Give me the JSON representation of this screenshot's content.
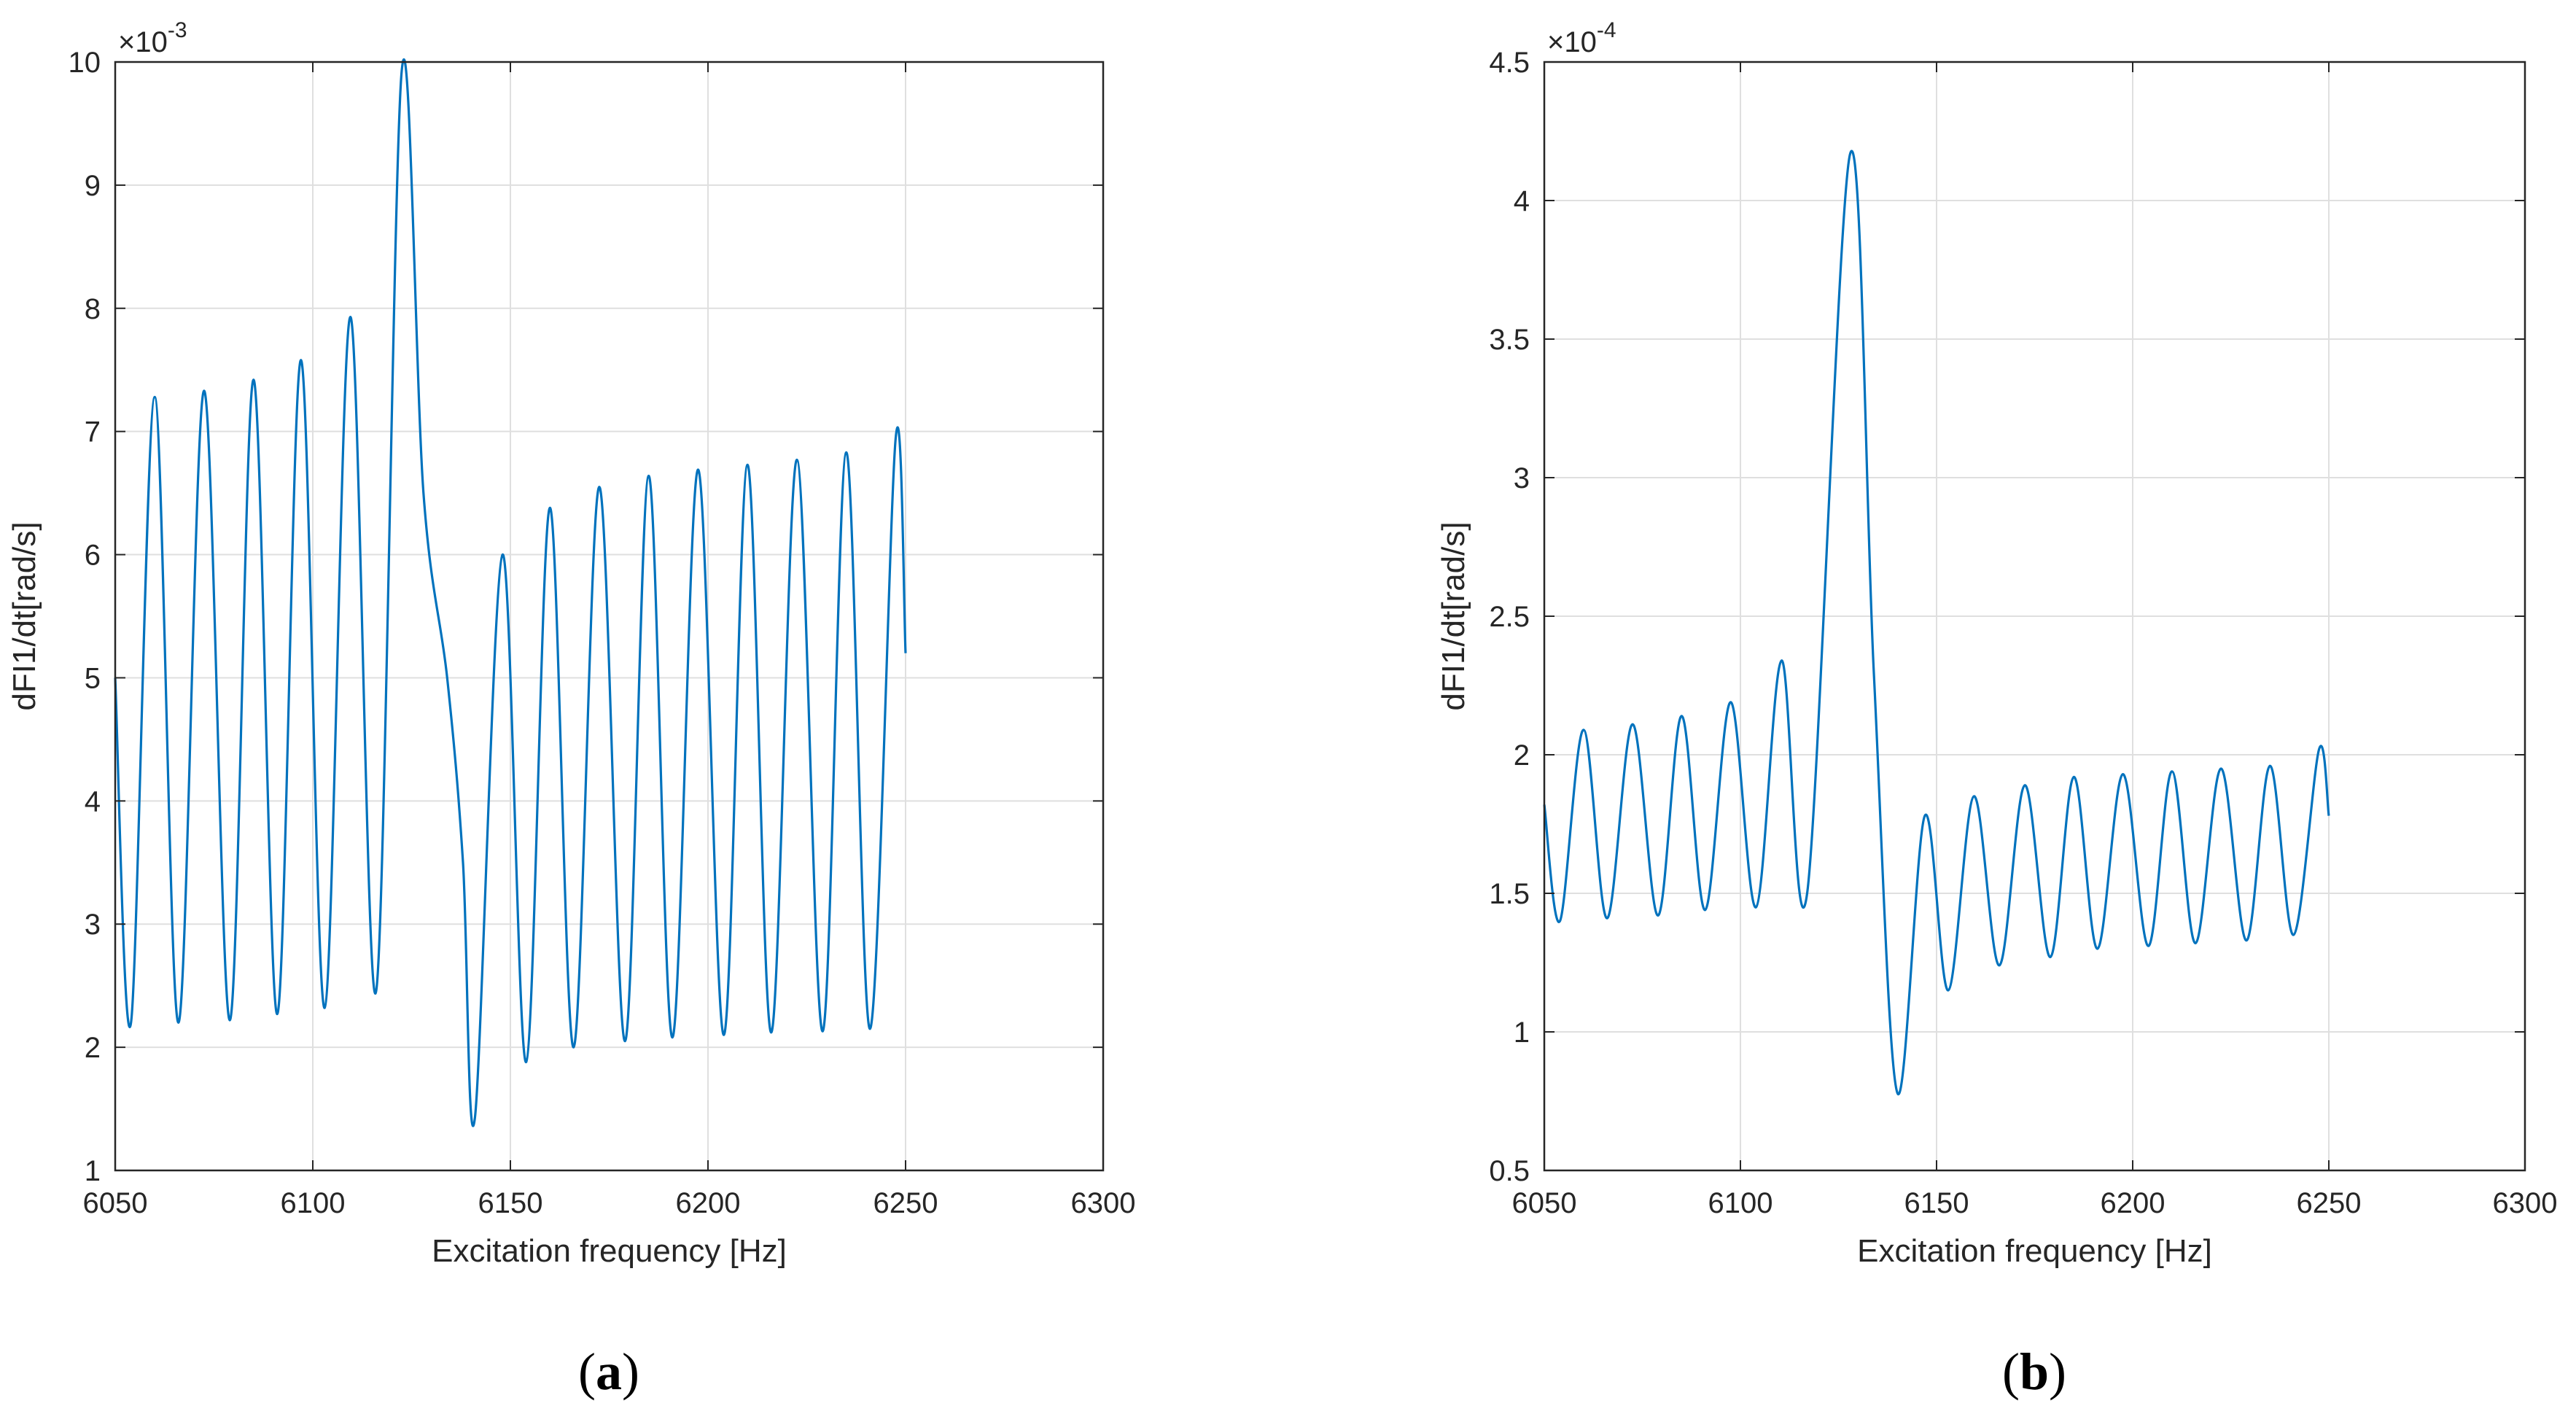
{
  "figure": {
    "color_line": "#0072BD",
    "color_grid": "#DFDFDF",
    "color_axis": "#262626"
  },
  "chart_data": [
    {
      "type": "line",
      "panel": "a",
      "caption_open": "(",
      "caption_letter": "a",
      "caption_close": ")",
      "xlabel": "Excitation frequency [Hz]",
      "ylabel": "dFI1/dt[rad/s]",
      "xlim": [
        6050,
        6300
      ],
      "ylim": [
        1,
        10
      ],
      "xticks": [
        6050,
        6100,
        6150,
        6200,
        6250,
        6300
      ],
      "xtick_labels": [
        "6050",
        "6100",
        "6150",
        "6200",
        "6250",
        "6300"
      ],
      "yticks": [
        1,
        2,
        3,
        4,
        5,
        6,
        7,
        8,
        9,
        10
      ],
      "ytick_labels": [
        "1",
        "2",
        "3",
        "4",
        "5",
        "6",
        "7",
        "8",
        "9",
        "10"
      ],
      "exponent_base": "×10",
      "exponent_power": "-3",
      "grid": true,
      "series": [
        {
          "name": "dFI1/dt",
          "x": [
            6050,
            6054,
            6060,
            6066,
            6072.5,
            6079,
            6085,
            6091,
            6097,
            6103,
            6109.5,
            6116,
            6122.5,
            6128,
            6134,
            6138,
            6141,
            6148,
            6154,
            6160,
            6166,
            6172.5,
            6179,
            6185,
            6191,
            6197.5,
            6204,
            6210,
            6216,
            6222.5,
            6229,
            6235,
            6241,
            6247.5,
            6250
          ],
          "y": [
            5.0,
            2.2,
            7.28,
            2.2,
            7.33,
            2.22,
            7.42,
            2.27,
            7.58,
            2.32,
            7.93,
            2.45,
            9.93,
            6.5,
            5.0,
            3.5,
            1.42,
            6.0,
            1.88,
            6.38,
            2.0,
            6.55,
            2.05,
            6.64,
            2.08,
            6.69,
            2.1,
            6.73,
            2.12,
            6.77,
            2.13,
            6.83,
            2.15,
            6.95,
            5.2
          ]
        }
      ]
    },
    {
      "type": "line",
      "panel": "b",
      "caption_open": "(",
      "caption_letter": "b",
      "caption_close": ")",
      "xlabel": "Excitation frequency [Hz]",
      "ylabel": "dFI1/dt[rad/s]",
      "xlim": [
        6050,
        6300
      ],
      "ylim": [
        0.5,
        4.5
      ],
      "xticks": [
        6050,
        6100,
        6150,
        6200,
        6250,
        6300
      ],
      "xtick_labels": [
        "6050",
        "6100",
        "6150",
        "6200",
        "6250",
        "6300"
      ],
      "yticks": [
        0.5,
        1,
        1.5,
        2,
        2.5,
        3,
        3.5,
        4,
        4.5
      ],
      "ytick_labels": [
        "0.5",
        "1",
        "1.5",
        "2",
        "2.5",
        "3",
        "3.5",
        "4",
        "4.5"
      ],
      "exponent_base": "×10",
      "exponent_power": "-4",
      "grid": true,
      "series": [
        {
          "name": "dFI1/dt",
          "x": [
            6050,
            6054,
            6060,
            6066,
            6072.5,
            6079,
            6085,
            6091,
            6097.5,
            6104,
            6110.5,
            6117,
            6128,
            6134,
            6140,
            6147,
            6153,
            6159.5,
            6166,
            6172.5,
            6179,
            6185,
            6191,
            6197.5,
            6204,
            6210,
            6216,
            6222.5,
            6229,
            6235,
            6241,
            6247.5,
            6250
          ],
          "y": [
            1.82,
            1.4,
            2.09,
            1.41,
            2.11,
            1.42,
            2.14,
            1.44,
            2.19,
            1.45,
            2.34,
            1.5,
            4.17,
            2.3,
            0.78,
            1.78,
            1.15,
            1.85,
            1.24,
            1.89,
            1.27,
            1.92,
            1.3,
            1.93,
            1.31,
            1.94,
            1.32,
            1.95,
            1.33,
            1.96,
            1.35,
            2.02,
            1.78
          ]
        }
      ]
    }
  ]
}
